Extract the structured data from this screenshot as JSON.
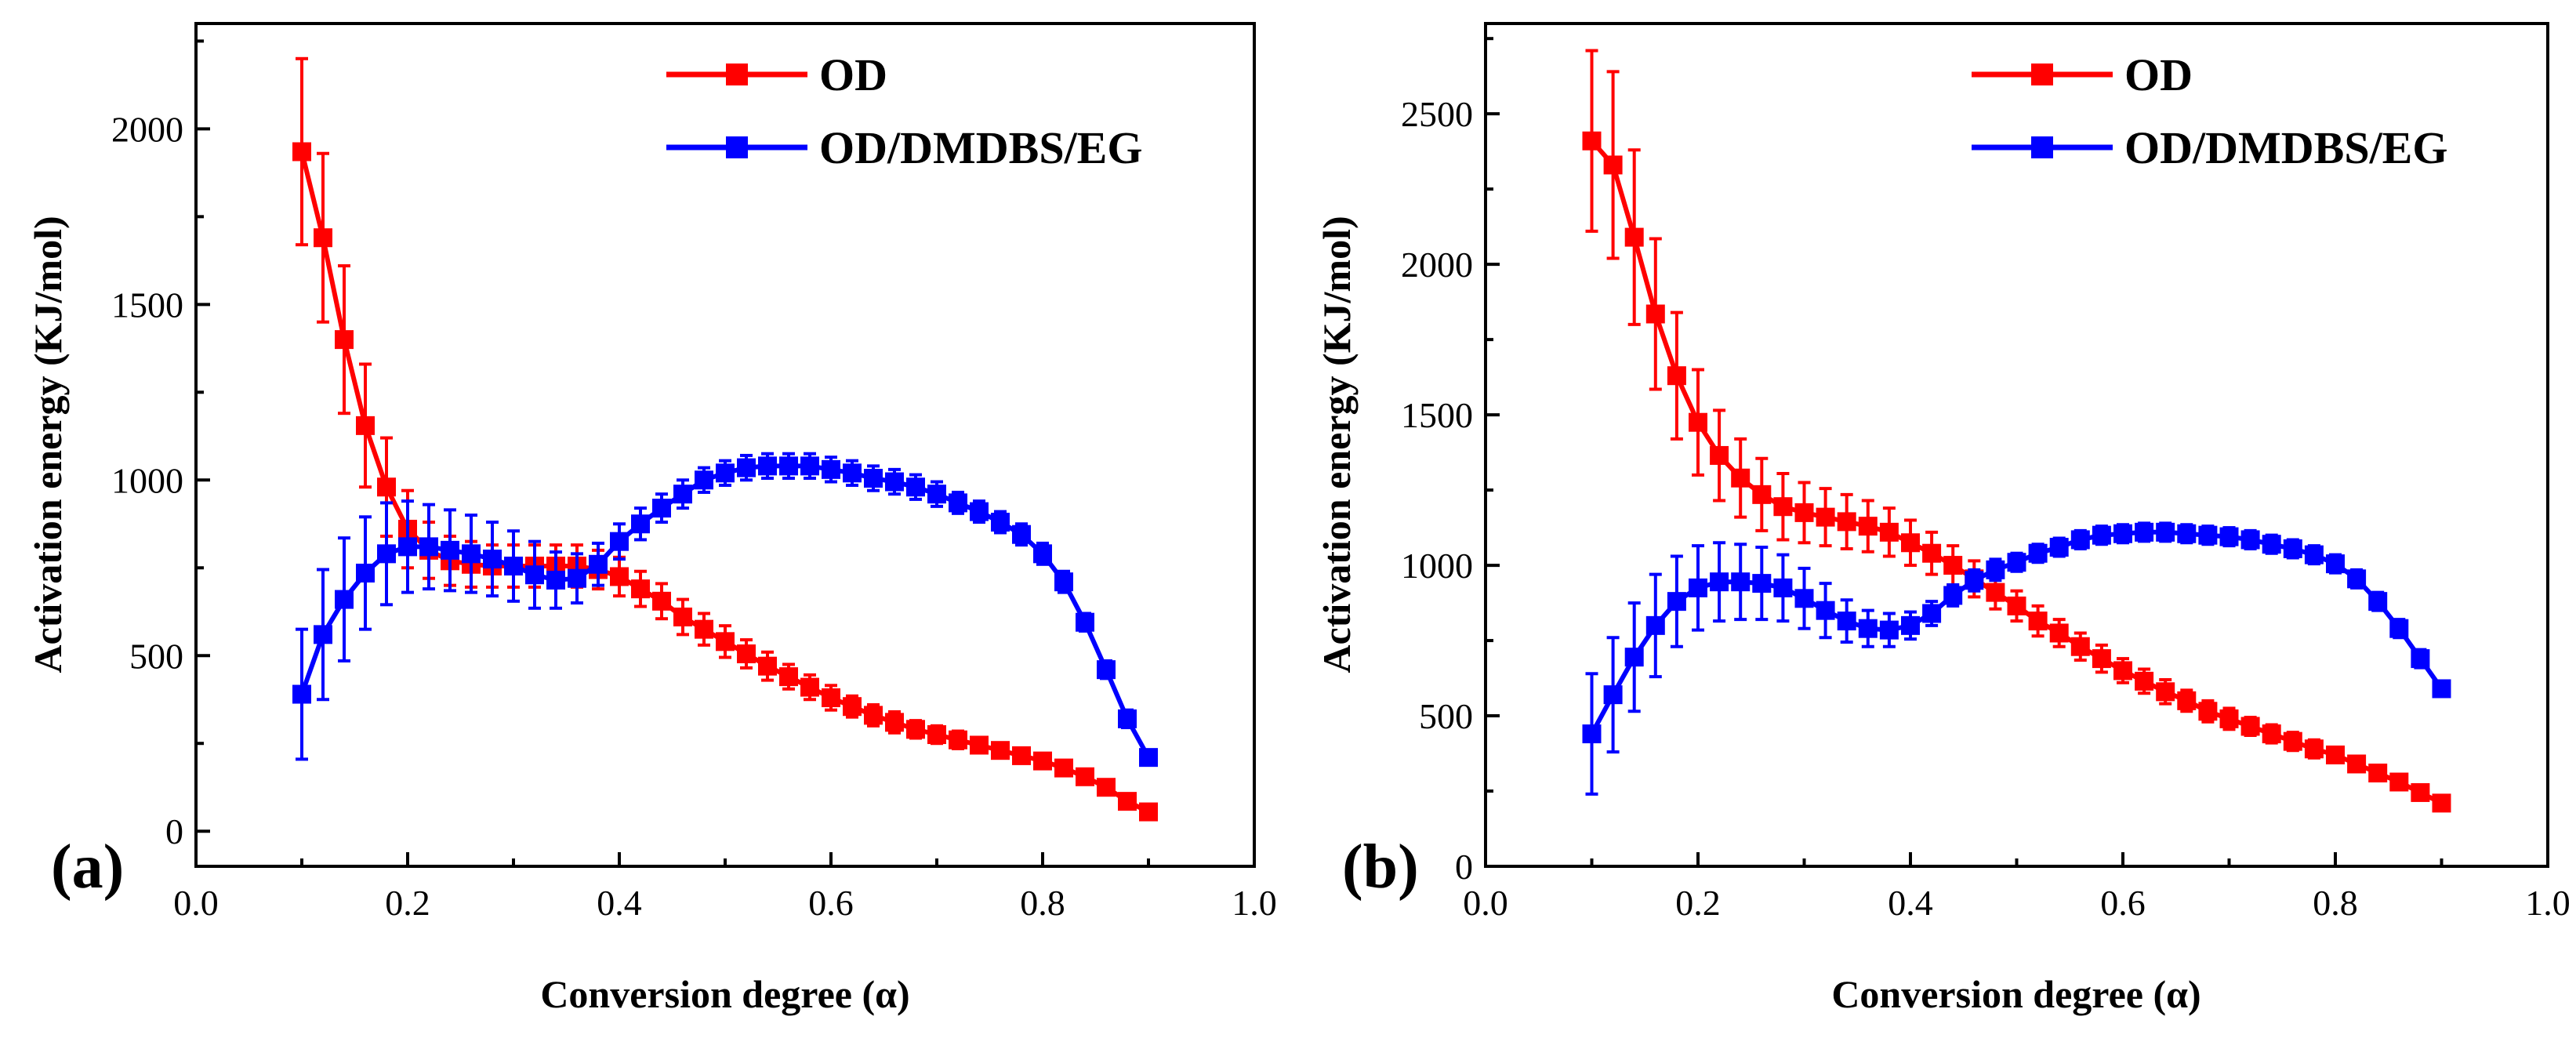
{
  "chart_data": [
    {
      "type": "line",
      "panel_label": "(a)",
      "xlabel": "Conversion degree (α)",
      "ylabel": "Activation energy (KJ/mol)",
      "xlim": [
        0.0,
        1.0
      ],
      "ylim": [
        -100,
        2300
      ],
      "xticks": [
        0.0,
        0.2,
        0.4,
        0.6,
        0.8,
        1.0
      ],
      "xtick_labels": [
        "0.0",
        "0.2",
        "0.4",
        "0.6",
        "0.8",
        "1.0"
      ],
      "yticks": [
        0,
        500,
        1000,
        1500,
        2000
      ],
      "ytick_labels": [
        "0",
        "500",
        "1000",
        "1500",
        "2000"
      ],
      "legend_position": "top-right",
      "x": [
        0.1,
        0.12,
        0.14,
        0.16,
        0.18,
        0.2,
        0.22,
        0.24,
        0.26,
        0.28,
        0.3,
        0.32,
        0.34,
        0.36,
        0.38,
        0.4,
        0.42,
        0.44,
        0.46,
        0.48,
        0.5,
        0.52,
        0.54,
        0.56,
        0.58,
        0.6,
        0.62,
        0.64,
        0.66,
        0.68,
        0.7,
        0.72,
        0.74,
        0.76,
        0.78,
        0.8,
        0.82,
        0.84,
        0.86,
        0.88,
        0.9
      ],
      "series": [
        {
          "name": "OD",
          "color": "#ff0000",
          "values": [
            1935,
            1690,
            1400,
            1155,
            980,
            860,
            800,
            770,
            760,
            755,
            755,
            755,
            755,
            755,
            745,
            725,
            690,
            655,
            610,
            575,
            540,
            505,
            470,
            440,
            410,
            380,
            355,
            330,
            310,
            290,
            275,
            260,
            245,
            230,
            215,
            200,
            180,
            155,
            125,
            85,
            55
          ],
          "errors": [
            265,
            240,
            210,
            175,
            140,
            110,
            80,
            70,
            65,
            60,
            60,
            60,
            60,
            60,
            55,
            55,
            50,
            50,
            50,
            45,
            45,
            40,
            40,
            35,
            35,
            35,
            30,
            30,
            30,
            25,
            25,
            25,
            20,
            20,
            20,
            20,
            20,
            20,
            15,
            15,
            15
          ]
        },
        {
          "name": "OD/DMDBS/EG",
          "color": "#0000ff",
          "values": [
            390,
            560,
            660,
            735,
            790,
            810,
            810,
            800,
            790,
            775,
            755,
            730,
            715,
            720,
            760,
            825,
            875,
            920,
            960,
            1000,
            1020,
            1035,
            1040,
            1040,
            1040,
            1030,
            1020,
            1005,
            995,
            980,
            960,
            935,
            910,
            880,
            845,
            790,
            710,
            595,
            460,
            320,
            210
          ],
          "errors": [
            185,
            185,
            175,
            160,
            145,
            130,
            120,
            115,
            110,
            105,
            100,
            95,
            80,
            70,
            60,
            50,
            45,
            40,
            40,
            35,
            35,
            35,
            35,
            35,
            35,
            35,
            35,
            35,
            35,
            35,
            35,
            30,
            30,
            30,
            30,
            30,
            30,
            25,
            25,
            25,
            20
          ]
        }
      ]
    },
    {
      "type": "line",
      "panel_label": "(b)",
      "xlabel": "Conversion degree (α)",
      "ylabel": "Activation energy (KJ/mol)",
      "xlim": [
        0.0,
        1.0
      ],
      "ylim": [
        0,
        2800
      ],
      "xticks": [
        0.0,
        0.2,
        0.4,
        0.6,
        0.8,
        1.0
      ],
      "xtick_labels": [
        "0.0",
        "0.2",
        "0.4",
        "0.6",
        "0.8",
        "1.0"
      ],
      "yticks": [
        0,
        500,
        1000,
        1500,
        2000,
        2500
      ],
      "ytick_labels": [
        "0",
        "500",
        "1000",
        "1500",
        "2000",
        "2500"
      ],
      "legend_position": "top-right",
      "x": [
        0.1,
        0.12,
        0.14,
        0.16,
        0.18,
        0.2,
        0.22,
        0.24,
        0.26,
        0.28,
        0.3,
        0.32,
        0.34,
        0.36,
        0.38,
        0.4,
        0.42,
        0.44,
        0.46,
        0.48,
        0.5,
        0.52,
        0.54,
        0.56,
        0.58,
        0.6,
        0.62,
        0.64,
        0.66,
        0.68,
        0.7,
        0.72,
        0.74,
        0.76,
        0.78,
        0.8,
        0.82,
        0.84,
        0.86,
        0.88,
        0.9
      ],
      "series": [
        {
          "name": "OD",
          "color": "#ff0000",
          "values": [
            2410,
            2330,
            2090,
            1835,
            1630,
            1475,
            1365,
            1290,
            1235,
            1195,
            1175,
            1160,
            1145,
            1130,
            1110,
            1075,
            1040,
            1000,
            955,
            910,
            865,
            815,
            775,
            730,
            690,
            650,
            615,
            580,
            550,
            515,
            490,
            465,
            440,
            415,
            390,
            370,
            340,
            310,
            280,
            245,
            210
          ],
          "errors": [
            300,
            310,
            290,
            250,
            210,
            175,
            150,
            130,
            120,
            110,
            100,
            95,
            90,
            85,
            80,
            75,
            70,
            65,
            60,
            55,
            50,
            50,
            45,
            45,
            45,
            40,
            40,
            40,
            35,
            35,
            35,
            30,
            30,
            30,
            30,
            25,
            25,
            25,
            25,
            20,
            20
          ]
        },
        {
          "name": "OD/DMDBS/EG",
          "color": "#0000ff",
          "values": [
            440,
            570,
            695,
            800,
            880,
            925,
            945,
            945,
            940,
            925,
            890,
            850,
            815,
            790,
            785,
            800,
            840,
            900,
            950,
            985,
            1010,
            1040,
            1060,
            1085,
            1100,
            1105,
            1110,
            1110,
            1105,
            1100,
            1095,
            1085,
            1070,
            1055,
            1035,
            1005,
            955,
            880,
            790,
            690,
            590
          ],
          "errors": [
            200,
            190,
            180,
            170,
            150,
            140,
            130,
            125,
            120,
            110,
            100,
            90,
            70,
            60,
            55,
            45,
            40,
            35,
            35,
            35,
            30,
            30,
            30,
            30,
            30,
            30,
            30,
            30,
            30,
            30,
            30,
            30,
            30,
            30,
            30,
            30,
            30,
            30,
            30,
            30,
            25
          ]
        }
      ]
    }
  ]
}
